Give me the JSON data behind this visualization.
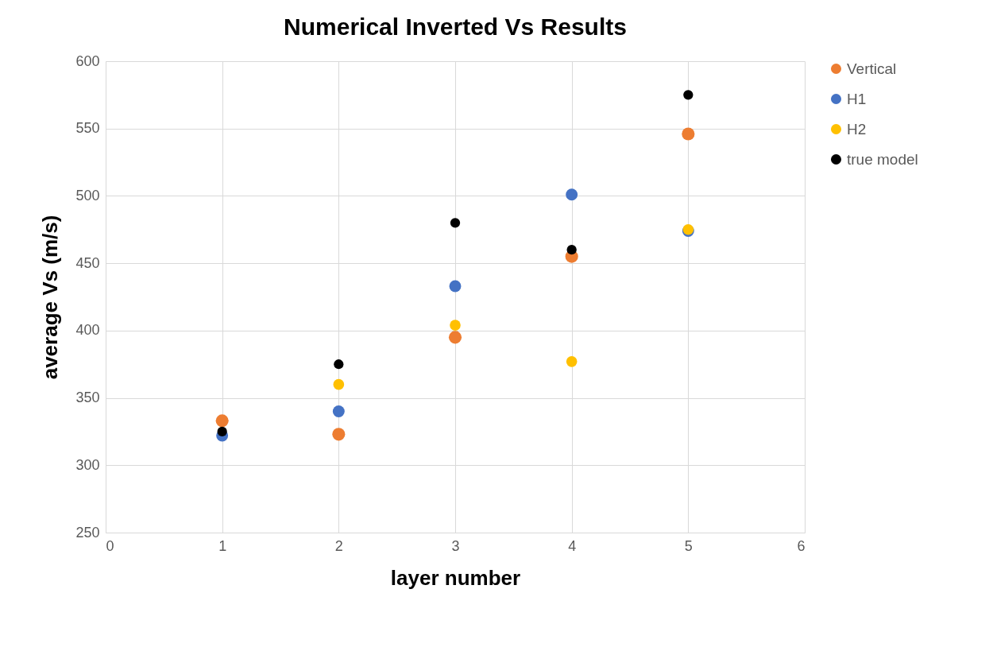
{
  "chart_data": {
    "type": "scatter",
    "title": "Numerical Inverted Vs Results",
    "xlabel": "layer number",
    "ylabel": "average Vs (m/s)",
    "x": [
      1,
      2,
      3,
      4,
      5
    ],
    "series": [
      {
        "name": "Vertical",
        "color": "#ed7d31",
        "values": [
          333,
          323,
          395,
          455,
          546
        ]
      },
      {
        "name": "H1",
        "color": "#4472c4",
        "values": [
          322,
          340,
          433,
          501,
          474
        ]
      },
      {
        "name": "H2",
        "color": "#ffc000",
        "values": [
          null,
          360,
          404,
          377,
          475
        ]
      },
      {
        "name": "true model",
        "color": "#000000",
        "values": [
          325,
          375,
          480,
          460,
          575
        ]
      }
    ],
    "xlim": [
      0,
      6
    ],
    "xticks": [
      0,
      1,
      2,
      3,
      4,
      5,
      6
    ],
    "ylim": [
      250,
      600
    ],
    "yticks": [
      250,
      300,
      350,
      400,
      450,
      500,
      550,
      600
    ],
    "grid": true,
    "legend": "right",
    "marker": "circle"
  }
}
